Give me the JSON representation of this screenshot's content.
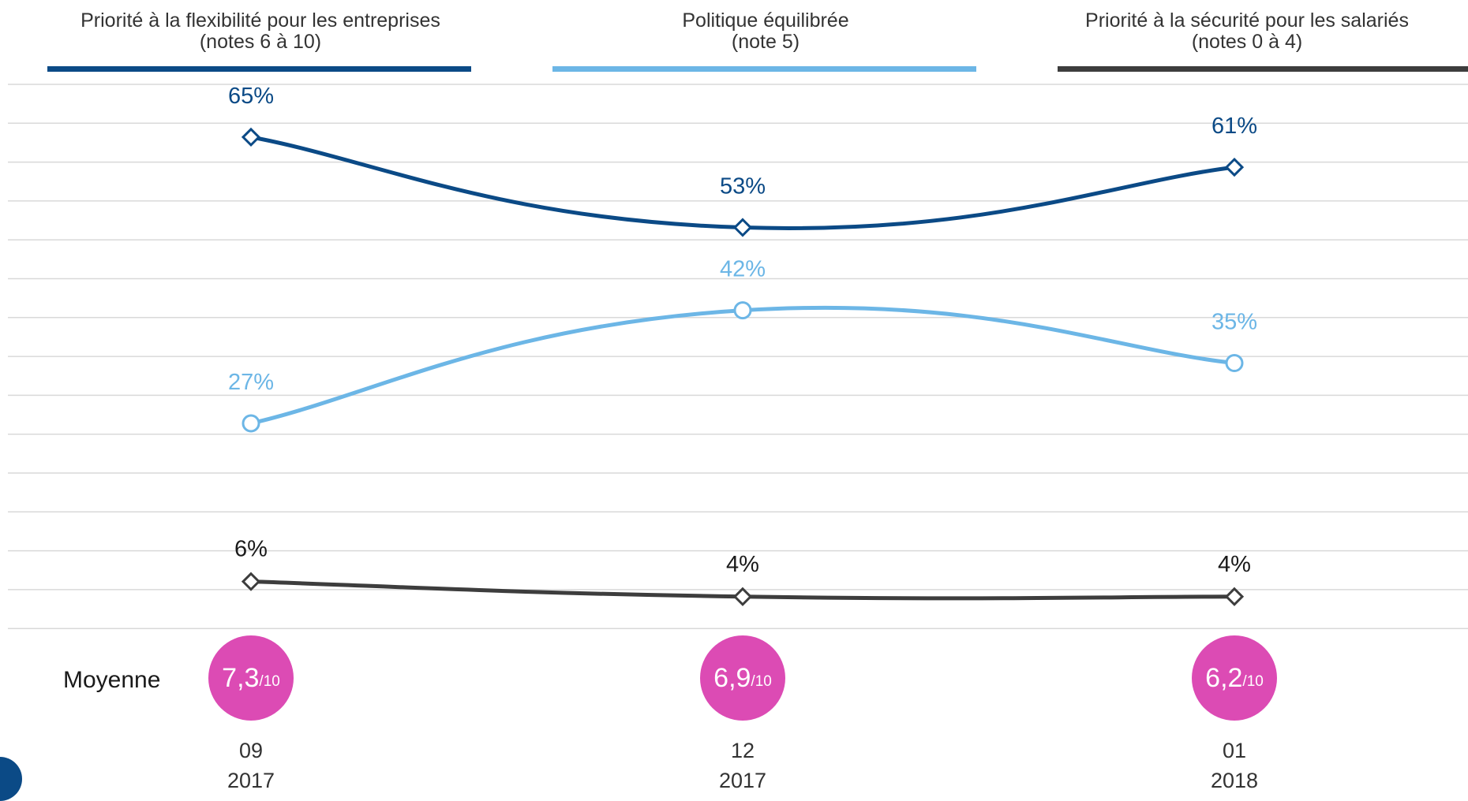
{
  "legend": [
    {
      "title": "Priorité à la flexibilité pour les entreprises",
      "subtitle": "(notes 6 à 10)",
      "color": "#0b4a86"
    },
    {
      "title": "Politique équilibrée",
      "subtitle": "(note 5)",
      "color": "#6cb6e6"
    },
    {
      "title": "Priorité à la sécurité pour les salariés",
      "subtitle": "(notes 0 à 4)",
      "color": "#3d3d3d"
    }
  ],
  "average": {
    "label": "Moyenne",
    "values": [
      {
        "value": "7,3",
        "suffix": "/10"
      },
      {
        "value": "6,9",
        "suffix": "/10"
      },
      {
        "value": "6,2",
        "suffix": "/10"
      }
    ]
  },
  "x_ticks": [
    {
      "month": "09",
      "year": "2017"
    },
    {
      "month": "12",
      "year": "2017"
    },
    {
      "month": "01",
      "year": "2018"
    }
  ],
  "chart_data": {
    "type": "line",
    "categories": [
      "09 2017",
      "12 2017",
      "01 2018"
    ],
    "series": [
      {
        "name": "Priorité à la flexibilité pour les entreprises (notes 6 à 10)",
        "values": [
          65,
          53,
          61
        ],
        "labels": [
          "65%",
          "53%",
          "61%"
        ],
        "color": "#0b4a86",
        "marker": "diamond"
      },
      {
        "name": "Politique équilibrée (note 5)",
        "values": [
          27,
          42,
          35
        ],
        "labels": [
          "27%",
          "42%",
          "35%"
        ],
        "color": "#6cb6e6",
        "marker": "circle"
      },
      {
        "name": "Priorité à la sécurité pour les salariés (notes 0 à 4)",
        "values": [
          6,
          4,
          4
        ],
        "labels": [
          "6%",
          "4%",
          "4%"
        ],
        "color": "#3d3d3d",
        "marker": "diamond"
      }
    ],
    "ylim": [
      0,
      72
    ],
    "grid": true,
    "legend_position": "top"
  }
}
